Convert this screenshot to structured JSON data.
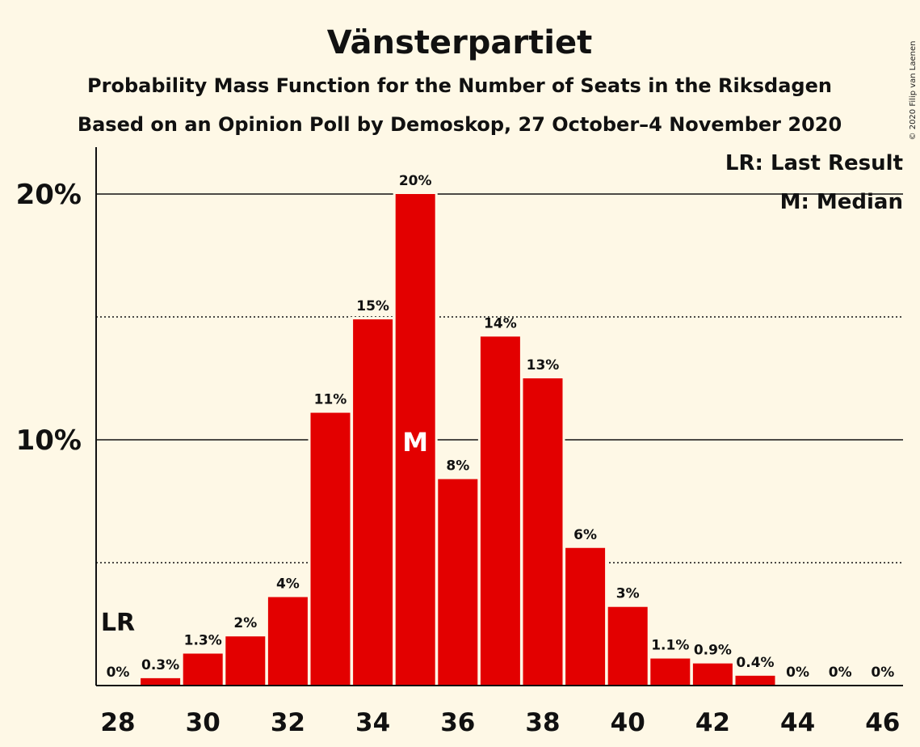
{
  "chart_data": {
    "type": "bar",
    "title": "Vänsterpartiet",
    "subtitle": "Probability Mass Function for the Number of Seats in the Riksdagen",
    "subtitle2": "Based on an Opinion Poll by Demoskop, 27 October–4 November 2020",
    "copyright": "© 2020 Filip van Laenen",
    "seats": [
      28,
      29,
      30,
      31,
      32,
      33,
      34,
      35,
      36,
      37,
      38,
      39,
      40,
      41,
      42,
      43,
      44,
      45,
      46
    ],
    "values": [
      0,
      0.3,
      1.3,
      2.0,
      3.6,
      11.1,
      14.9,
      20.0,
      8.4,
      14.2,
      12.5,
      5.6,
      3.2,
      1.1,
      0.9,
      0.4,
      0,
      0,
      0
    ],
    "value_labels": [
      "0%",
      "0.3%",
      "1.3%",
      "2%",
      "4%",
      "11%",
      "15%",
      "20%",
      "8%",
      "14%",
      "13%",
      "6%",
      "3%",
      "1.1%",
      "0.9%",
      "0.4%",
      "0%",
      "0%",
      "0%"
    ],
    "x_tick_labels": [
      "28",
      "30",
      "32",
      "34",
      "36",
      "38",
      "40",
      "42",
      "44",
      "46"
    ],
    "y_tick_labels": [
      "10%",
      "20%"
    ],
    "ylim": [
      0,
      21.9
    ],
    "solid_gridlines": [
      10,
      20
    ],
    "dotted_gridlines": [
      5,
      15
    ],
    "bar_color": "#E30000",
    "background_color": "#FEF8E6",
    "last_result": {
      "seat": 28,
      "label": "LR"
    },
    "median": {
      "seat": 35,
      "label": "M"
    },
    "legend": [
      "LR: Last Result",
      "M: Median"
    ]
  }
}
